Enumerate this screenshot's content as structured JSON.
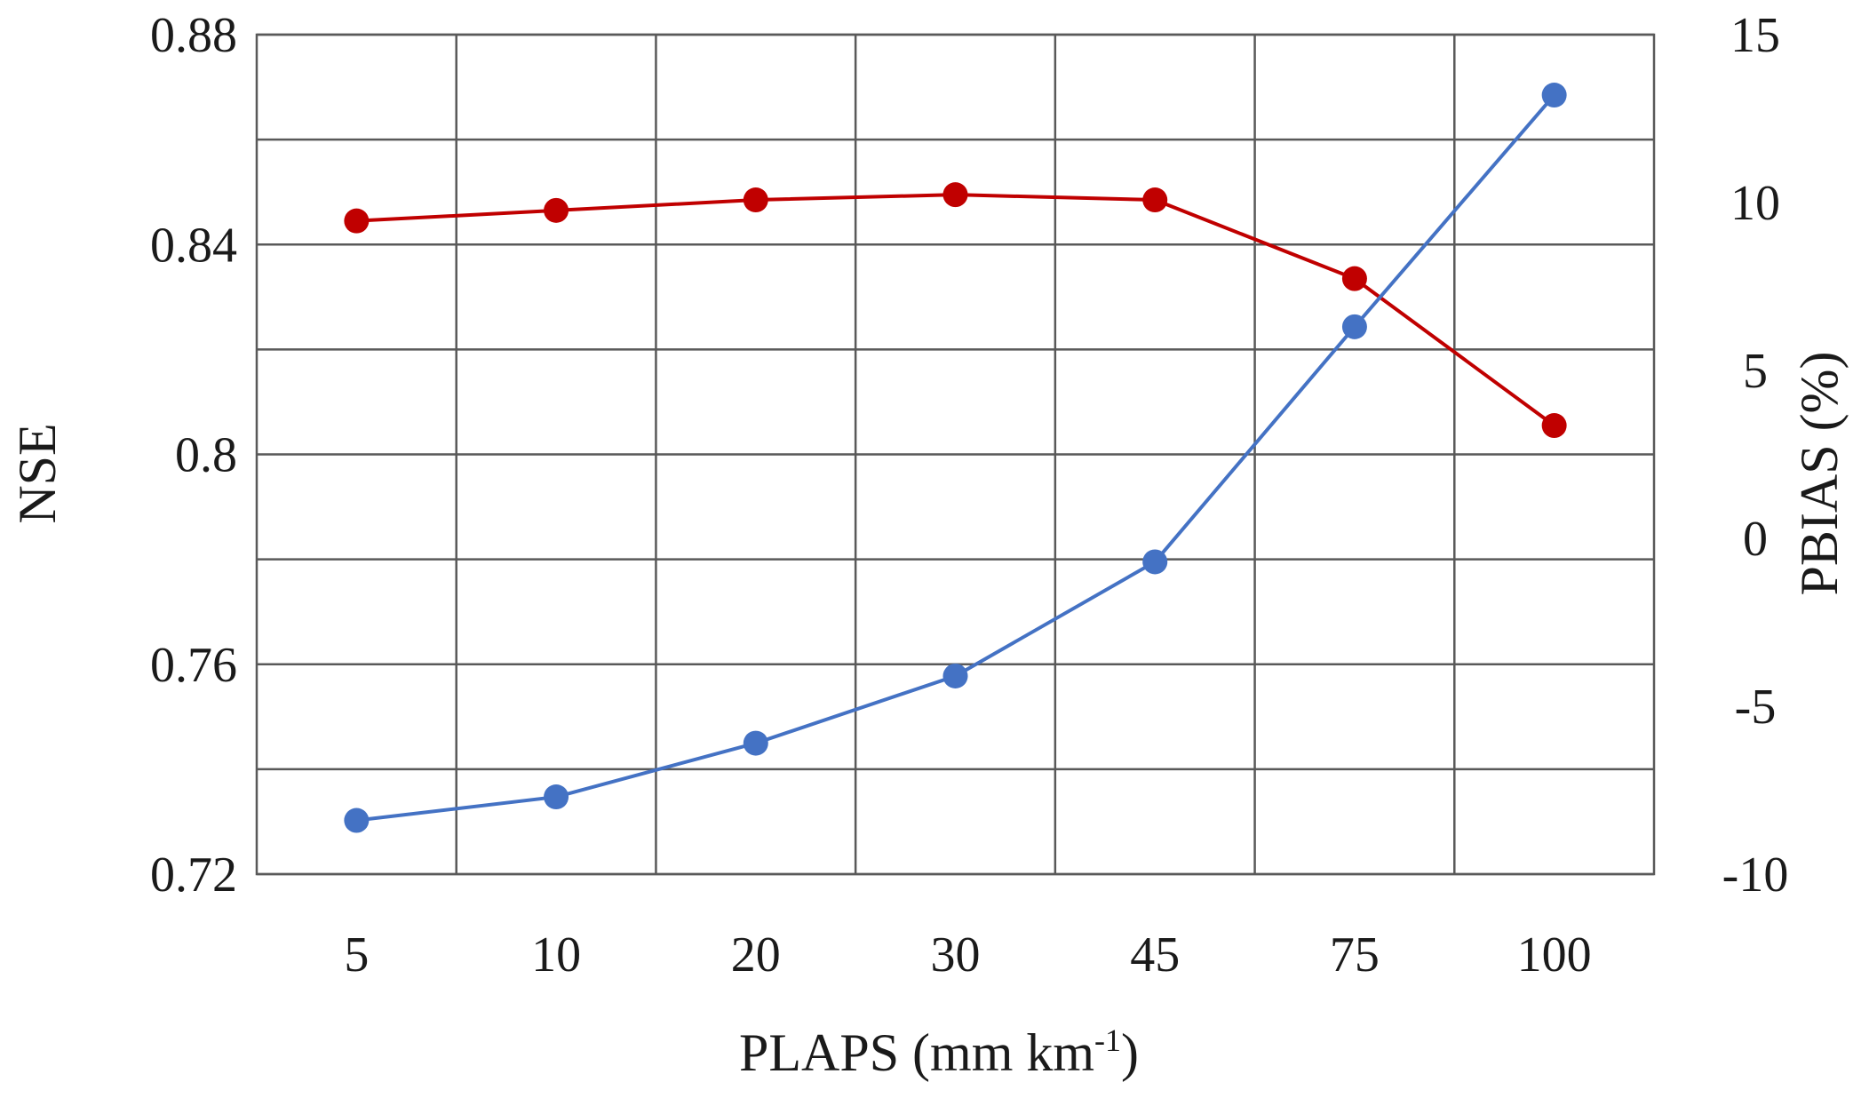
{
  "chart_data": {
    "type": "line",
    "categories": [
      "5",
      "10",
      "20",
      "30",
      "45",
      "75",
      "100"
    ],
    "xlabel_main": "PLAPS (mm km",
    "xlabel_sup": "-1",
    "xlabel_end": ")",
    "ylabel_left": "NSE",
    "ylabel_right": "PBIAS (%)",
    "y_left": {
      "ylim": [
        0.72,
        0.88
      ],
      "ticks": [
        "0.72",
        "0.76",
        "0.8",
        "0.84",
        "0.88"
      ],
      "tick_values": [
        0.72,
        0.76,
        0.8,
        0.84,
        0.88
      ],
      "minor_grid": [
        0.74,
        0.78,
        0.82,
        0.86
      ]
    },
    "y_right": {
      "ylim": [
        -10,
        15
      ],
      "ticks": [
        "-10",
        "-5",
        "0",
        "5",
        "10",
        "15"
      ],
      "tick_values": [
        -10,
        -5,
        0,
        5,
        10,
        15
      ]
    },
    "grid": true,
    "series": [
      {
        "axis": "left",
        "color": "#c00000",
        "values": [
          0.8445,
          0.8465,
          0.8485,
          0.8495,
          0.8485,
          0.8335,
          0.8055
        ]
      },
      {
        "axis": "right",
        "color": "#4472c4",
        "values": [
          -8.4,
          -7.7,
          -6.1,
          -4.1,
          -0.7,
          6.3,
          13.2
        ]
      }
    ]
  }
}
